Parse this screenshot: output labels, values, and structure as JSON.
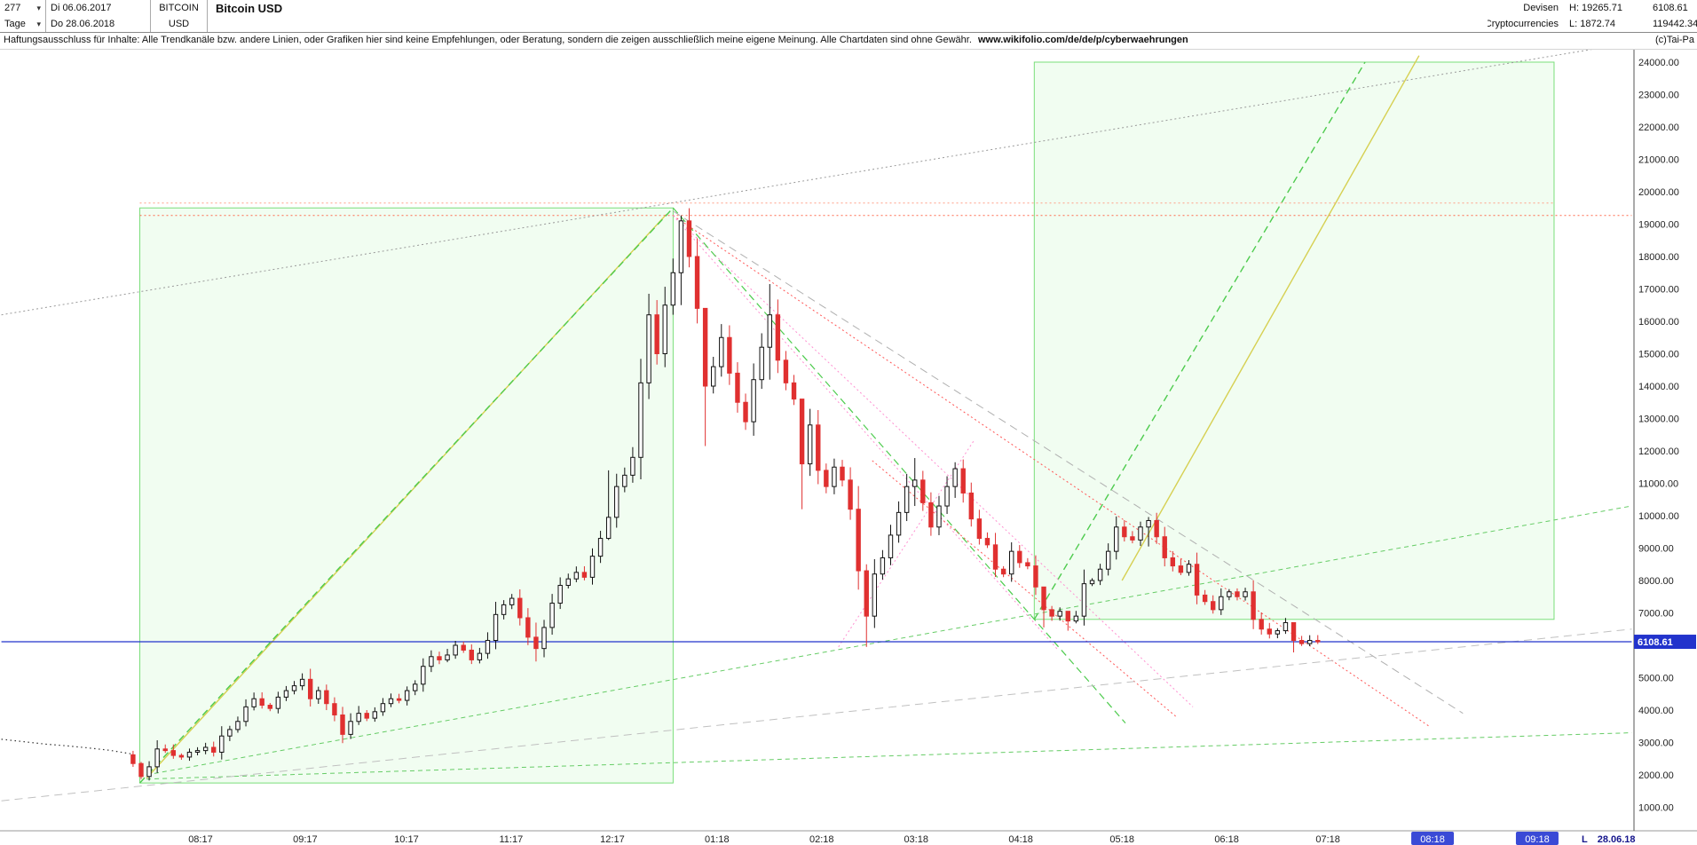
{
  "icons": {
    "dropdown": "▾"
  },
  "colors": {
    "up_candle": "#111111",
    "down_candle": "#e03030",
    "box_fill": "rgba(144,238,144,0.13)",
    "box_stroke": "#7ade7a",
    "current_price_line": "#2233cc",
    "price_tag_bg": "#2233cc",
    "month_highlight": "#3a4ad6"
  },
  "header": {
    "bars_count": "277",
    "period_label": "Tage",
    "date_from": "Di 06.06.2017",
    "date_to": "Do 28.06.2018",
    "symbol_line1": "BITCOIN",
    "symbol_line2": "USD",
    "title": "Bitcoin USD",
    "right": {
      "category_line1": "Devisen",
      "category_line2": "Cryptocurrencies",
      "high_label": "H: 19265.71",
      "low_label": "L: 1872.74",
      "last_price": "6108.61",
      "volume": "119442.34"
    }
  },
  "disclaimer": {
    "text": "Haftungsausschluss für Inhalte: Alle Trendkanäle bzw. andere Linien, oder Grafiken hier sind keine Empfehlungen, oder Beratung, sondern die zeigen ausschließlich meine eigene Meinung. Alle Chartdaten sind ohne Gewähr.",
    "url": "www.wikifolio.com/de/de/p/cyberwaehrungen",
    "copyright": "(c)Tai-Pa"
  },
  "axis": {
    "y_labels": [
      "24000.00",
      "23000.00",
      "22000.00",
      "21000.00",
      "20000.00",
      "19000.00",
      "18000.00",
      "17000.00",
      "16000.00",
      "15000.00",
      "14000.00",
      "13000.00",
      "12000.00",
      "11000.00",
      "10000.00",
      "9000.00",
      "8000.00",
      "7000.00",
      "6000.00",
      "5000.00",
      "4000.00",
      "3000.00",
      "2000.00",
      "1000.00"
    ],
    "x_labels": [
      {
        "label": "08:17",
        "t": 56
      },
      {
        "label": "09:17",
        "t": 87
      },
      {
        "label": "10:17",
        "t": 117
      },
      {
        "label": "11:17",
        "t": 148
      },
      {
        "label": "12:17",
        "t": 178
      },
      {
        "label": "01:18",
        "t": 209
      },
      {
        "label": "02:18",
        "t": 240
      },
      {
        "label": "03:18",
        "t": 268
      },
      {
        "label": "04:18",
        "t": 299
      },
      {
        "label": "05:18",
        "t": 329
      },
      {
        "label": "06:18",
        "t": 360
      },
      {
        "label": "07:18",
        "t": 390
      },
      {
        "label": "08:18",
        "t": 421,
        "highlight": true
      },
      {
        "label": "09:18",
        "t": 452,
        "highlight": true
      }
    ],
    "last_marker_prefix": "L",
    "last_marker_date": "28.06.18"
  },
  "chart_data": {
    "type": "candlestick",
    "title": "Bitcoin USD",
    "x_start": "06.06.2017",
    "x_end": "28.06.2018",
    "bars_count": 277,
    "y_range": [
      1000,
      24000
    ],
    "high": 19265.71,
    "low": 1872.74,
    "last_price": 6108.61,
    "first_open": 2620,
    "t_first_candle": 36,
    "t_step": 2.38776,
    "pre_trace": [
      [
        -3,
        3100
      ],
      [
        4,
        3020
      ],
      [
        10,
        2950
      ],
      [
        16,
        2900
      ],
      [
        22,
        2840
      ],
      [
        29,
        2760
      ],
      [
        36,
        2640
      ]
    ],
    "candles": [
      [
        2350
      ],
      [
        1950,
        2400,
        1872.74
      ],
      [
        2250
      ],
      [
        2800
      ],
      [
        2750
      ],
      [
        2600
      ],
      [
        2550
      ],
      [
        2700
      ],
      [
        2750
      ],
      [
        2850
      ],
      [
        2700
      ],
      [
        3200
      ],
      [
        3400
      ],
      [
        3650
      ],
      [
        4100
      ],
      [
        4350
      ],
      [
        4150
      ],
      [
        4050
      ],
      [
        4400
      ],
      [
        4600
      ],
      [
        4750
      ],
      [
        4950
      ],
      [
        4350
      ],
      [
        4600
      ],
      [
        4200
      ],
      [
        3850
      ],
      [
        3250,
        4100,
        2980
      ],
      [
        3650
      ],
      [
        3900
      ],
      [
        3750
      ],
      [
        3950
      ],
      [
        4200
      ],
      [
        4350
      ],
      [
        4300
      ],
      [
        4600
      ],
      [
        4800
      ],
      [
        5350
      ],
      [
        5650
      ],
      [
        5550
      ],
      [
        5700
      ],
      [
        6000
      ],
      [
        5850
      ],
      [
        5550
      ],
      [
        5750
      ],
      [
        6150
      ],
      [
        6950
      ],
      [
        7250
      ],
      [
        7450
      ],
      [
        6850
      ],
      [
        6250
      ],
      [
        5900,
        6700,
        5500
      ],
      [
        6550
      ],
      [
        7300
      ],
      [
        7850
      ],
      [
        8050
      ],
      [
        8250
      ],
      [
        8100
      ],
      [
        8750
      ],
      [
        9300
      ],
      [
        9950,
        11400,
        9250
      ],
      [
        10900
      ],
      [
        11250
      ],
      [
        11800
      ],
      [
        14100
      ],
      [
        16200,
        16850,
        13600
      ],
      [
        15000
      ],
      [
        16500
      ],
      [
        17500
      ],
      [
        19100,
        19265.71,
        16500
      ],
      [
        18000
      ],
      [
        16400
      ],
      [
        14000,
        15500,
        12150
      ],
      [
        14600
      ],
      [
        15500
      ],
      [
        14400
      ],
      [
        13500
      ],
      [
        12900
      ],
      [
        14200
      ],
      [
        15200
      ],
      [
        16200,
        17150,
        14200
      ],
      [
        14800
      ],
      [
        14100
      ],
      [
        13600
      ],
      [
        11600,
        12500,
        10200
      ],
      [
        12800
      ],
      [
        11400
      ],
      [
        10900
      ],
      [
        11500
      ],
      [
        11100
      ],
      [
        10200
      ],
      [
        8300
      ],
      [
        6900,
        8500,
        5950
      ],
      [
        8200
      ],
      [
        8700
      ],
      [
        9400
      ],
      [
        10100
      ],
      [
        10900
      ],
      [
        11100,
        11780,
        10300
      ],
      [
        10400
      ],
      [
        9650
      ],
      [
        10300
      ],
      [
        10900
      ],
      [
        11450,
        11650,
        10550
      ],
      [
        10700
      ],
      [
        9900
      ],
      [
        9300
      ],
      [
        9100
      ],
      [
        8350
      ],
      [
        8200
      ],
      [
        8900
      ],
      [
        8550
      ],
      [
        8450
      ],
      [
        7800
      ],
      [
        7100,
        7500,
        6550
      ],
      [
        6900
      ],
      [
        7050
      ],
      [
        6750,
        7000,
        6450
      ],
      [
        6900
      ],
      [
        7900
      ],
      [
        8000
      ],
      [
        8350
      ],
      [
        8900
      ],
      [
        9650
      ],
      [
        9350
      ],
      [
        9250
      ],
      [
        9650
      ],
      [
        9850,
        9960,
        9050
      ],
      [
        9350
      ],
      [
        8700
      ],
      [
        8450
      ],
      [
        8250
      ],
      [
        8500
      ],
      [
        7550
      ],
      [
        7350
      ],
      [
        7100
      ],
      [
        7500
      ],
      [
        7650
      ],
      [
        7500
      ],
      [
        7650
      ],
      [
        6800
      ],
      [
        6500
      ],
      [
        6350
      ],
      [
        6450
      ],
      [
        6700
      ],
      [
        6150,
        6400,
        5780
      ],
      [
        6050
      ],
      [
        6150
      ],
      [
        6108.61
      ]
    ],
    "boxes": [
      {
        "t1": 38,
        "t2": 196,
        "p_top": 19500,
        "p_bottom": 1750
      },
      {
        "t1": 303,
        "t2": 457,
        "p_top": 24000,
        "p_bottom": 6800
      }
    ],
    "lines": [
      {
        "t1": 40,
        "p1": 1900,
        "t2": 194,
        "p2": 19300,
        "color": "#d6d052",
        "dash": "",
        "w": 1.4
      },
      {
        "t1": 38,
        "p1": 1750,
        "t2": 196,
        "p2": 19500,
        "color": "#4ecb4e",
        "dash": "8,5",
        "w": 1.4
      },
      {
        "t1": 303,
        "p1": 6800,
        "t2": 401,
        "p2": 24000,
        "color": "#4ecb4e",
        "dash": "8,5",
        "w": 1.4
      },
      {
        "t1": 329,
        "p1": 8000,
        "t2": 417,
        "p2": 24200,
        "color": "#d6d052",
        "dash": "",
        "w": 1.4
      },
      {
        "t1": 40,
        "p1": 2000,
        "t2": 480,
        "p2": 10300,
        "color": "#66cc66",
        "dash": "5,4",
        "w": 1
      },
      {
        "t1": 40,
        "p1": 1870,
        "t2": 480,
        "p2": 3300,
        "color": "#66cc66",
        "dash": "5,4",
        "w": 1
      },
      {
        "t1": 38,
        "p1": 19265.71,
        "t2": 480,
        "p2": 19265.71,
        "color": "#ff6a4d",
        "dash": "2,3",
        "w": 1
      },
      {
        "t1": 38,
        "p1": 19650,
        "t2": 457,
        "p2": 19650,
        "color": "#ff9d86",
        "dash": "2,3",
        "w": 1
      },
      {
        "t1": 196,
        "p1": 19265,
        "t2": 420,
        "p2": 3500,
        "color": "#ff5555",
        "dash": "2,3",
        "w": 1
      },
      {
        "t1": 196,
        "p1": 19265,
        "t2": 310,
        "p2": 5860,
        "color": "#ff8fd0",
        "dash": "2,3",
        "w": 1
      },
      {
        "t1": 196,
        "p1": 19265,
        "t2": 350,
        "p2": 4100,
        "color": "#ff8fd0",
        "dash": "2,3",
        "w": 1
      },
      {
        "t1": 196,
        "p1": 19500,
        "t2": 330,
        "p2": 3600,
        "color": "#4ecb4e",
        "dash": "8,5",
        "w": 1.2
      },
      {
        "t1": 255,
        "p1": 11700,
        "t2": 345,
        "p2": 3800,
        "color": "#ff5555",
        "dash": "2,3",
        "w": 1
      },
      {
        "t1": 245,
        "p1": 5950,
        "t2": 285,
        "p2": 12300,
        "color": "#ff8fd0",
        "dash": "2,3",
        "w": 1
      },
      {
        "t1": 196,
        "p1": 19400,
        "t2": 430,
        "p2": 3900,
        "color": "#b0b0b0",
        "dash": "9,6",
        "w": 1
      },
      {
        "t1": -3,
        "p1": 16200,
        "t2": 480,
        "p2": 24600,
        "color": "#9a9a9a",
        "dash": "2,3",
        "w": 1
      },
      {
        "t1": -3,
        "p1": 1200,
        "t2": 480,
        "p2": 6500,
        "color": "#c0c0c0",
        "dash": "9,6",
        "w": 1
      },
      {
        "t1": -3,
        "p1": 6108.61,
        "t2": 480,
        "p2": 6108.61,
        "color": "#2233cc",
        "dash": "",
        "w": 1.3
      }
    ]
  }
}
